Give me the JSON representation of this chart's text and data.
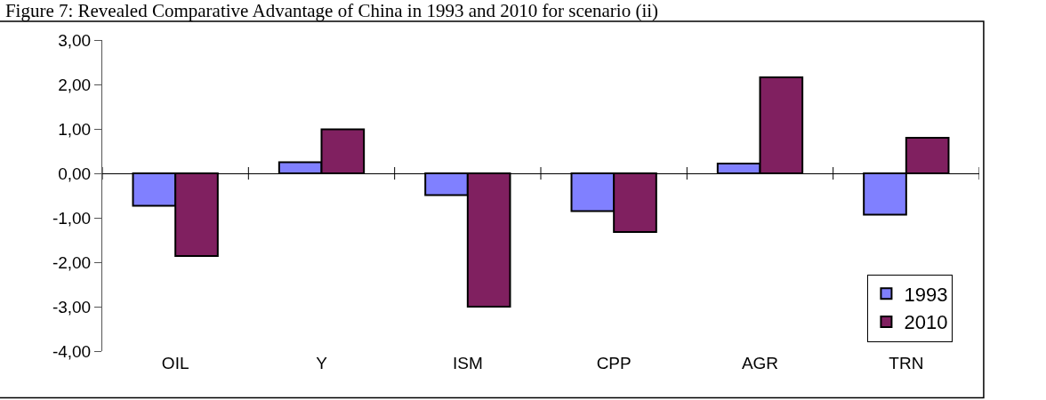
{
  "chart_data": {
    "type": "bar",
    "title": "Figure 7: Revealed Comparative Advantage of China in 1993 and 2010 for scenario (ii)",
    "categories": [
      "OIL",
      "Y",
      "ISM",
      "CPP",
      "AGR",
      "TRN"
    ],
    "series": [
      {
        "name": "1993",
        "color": "#8080ff",
        "values": [
          -0.73,
          0.25,
          -0.49,
          -0.85,
          0.22,
          -0.93
        ]
      },
      {
        "name": "2010",
        "color": "#802060",
        "values": [
          -1.86,
          0.99,
          -3.0,
          -1.32,
          2.16,
          0.8
        ]
      }
    ],
    "ylim": [
      -4,
      3
    ],
    "yticks": [
      {
        "value": -4,
        "label": "-4,00"
      },
      {
        "value": -3,
        "label": "-3,00"
      },
      {
        "value": -2,
        "label": "-2,00"
      },
      {
        "value": -1,
        "label": "-1,00"
      },
      {
        "value": 0,
        "label": "0,00"
      },
      {
        "value": 1,
        "label": "1,00"
      },
      {
        "value": 2,
        "label": "2,00"
      },
      {
        "value": 3,
        "label": "3,00"
      }
    ],
    "legend": "bottom right"
  }
}
